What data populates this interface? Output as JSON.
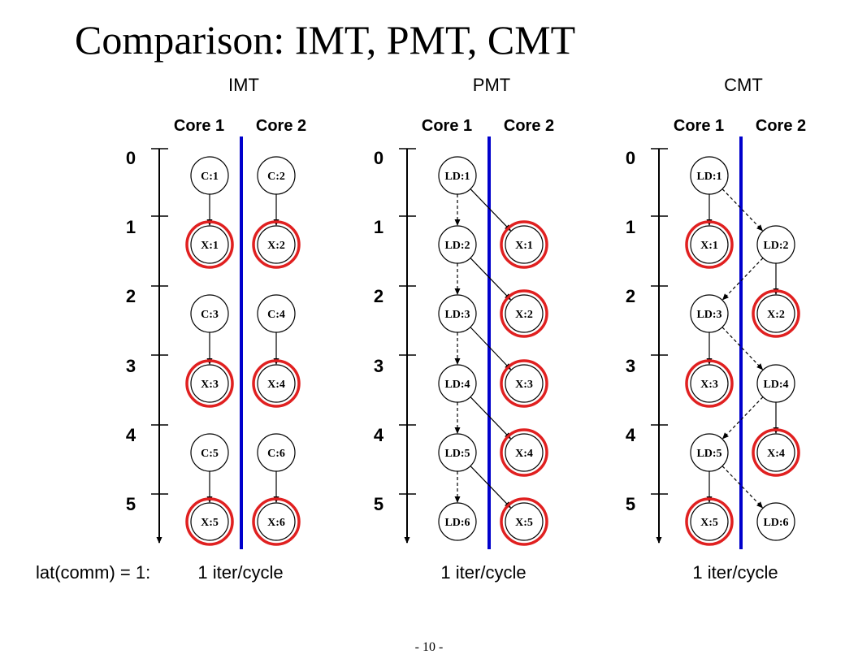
{
  "title": "Comparison: IMT, PMT, CMT",
  "latency_label": "lat(comm) = 1:",
  "page_number": "- 10 -",
  "colors": {
    "divider": "#0000cc",
    "highlight": "#e02020",
    "stroke": "#000000"
  },
  "panels": [
    {
      "name": "IMT",
      "core_labels": [
        "Core 1",
        "Core 2"
      ],
      "ticks": [
        "0",
        "1",
        "2",
        "3",
        "4",
        "5"
      ],
      "throughput": "1 iter/cycle",
      "nodes": [
        {
          "id": "C:1",
          "core": 1,
          "slot": 0,
          "hl": false
        },
        {
          "id": "C:2",
          "core": 2,
          "slot": 0,
          "hl": false
        },
        {
          "id": "X:1",
          "core": 1,
          "slot": 1,
          "hl": true
        },
        {
          "id": "X:2",
          "core": 2,
          "slot": 1,
          "hl": true
        },
        {
          "id": "C:3",
          "core": 1,
          "slot": 2,
          "hl": false
        },
        {
          "id": "C:4",
          "core": 2,
          "slot": 2,
          "hl": false
        },
        {
          "id": "X:3",
          "core": 1,
          "slot": 3,
          "hl": true
        },
        {
          "id": "X:4",
          "core": 2,
          "slot": 3,
          "hl": true
        },
        {
          "id": "C:5",
          "core": 1,
          "slot": 4,
          "hl": false
        },
        {
          "id": "C:6",
          "core": 2,
          "slot": 4,
          "hl": false
        },
        {
          "id": "X:5",
          "core": 1,
          "slot": 5,
          "hl": true
        },
        {
          "id": "X:6",
          "core": 2,
          "slot": 5,
          "hl": true
        }
      ],
      "edges": [
        {
          "from": "C:1",
          "to": "X:1",
          "dashed": false
        },
        {
          "from": "C:2",
          "to": "X:2",
          "dashed": false
        },
        {
          "from": "C:3",
          "to": "X:3",
          "dashed": false
        },
        {
          "from": "C:4",
          "to": "X:4",
          "dashed": false
        },
        {
          "from": "C:5",
          "to": "X:5",
          "dashed": false
        },
        {
          "from": "C:6",
          "to": "X:6",
          "dashed": false
        }
      ]
    },
    {
      "name": "PMT",
      "core_labels": [
        "Core 1",
        "Core 2"
      ],
      "ticks": [
        "0",
        "1",
        "2",
        "3",
        "4",
        "5"
      ],
      "throughput": "1 iter/cycle",
      "nodes": [
        {
          "id": "LD:1",
          "core": 1,
          "slot": 0,
          "hl": false
        },
        {
          "id": "LD:2",
          "core": 1,
          "slot": 1,
          "hl": false
        },
        {
          "id": "X:1",
          "core": 2,
          "slot": 1,
          "hl": true
        },
        {
          "id": "LD:3",
          "core": 1,
          "slot": 2,
          "hl": false
        },
        {
          "id": "X:2",
          "core": 2,
          "slot": 2,
          "hl": true
        },
        {
          "id": "LD:4",
          "core": 1,
          "slot": 3,
          "hl": false
        },
        {
          "id": "X:3",
          "core": 2,
          "slot": 3,
          "hl": true
        },
        {
          "id": "LD:5",
          "core": 1,
          "slot": 4,
          "hl": false
        },
        {
          "id": "X:4",
          "core": 2,
          "slot": 4,
          "hl": true
        },
        {
          "id": "LD:6",
          "core": 1,
          "slot": 5,
          "hl": false
        },
        {
          "id": "X:5",
          "core": 2,
          "slot": 5,
          "hl": true
        }
      ],
      "edges": [
        {
          "from": "LD:1",
          "to": "LD:2",
          "dashed": true
        },
        {
          "from": "LD:2",
          "to": "LD:3",
          "dashed": true
        },
        {
          "from": "LD:3",
          "to": "LD:4",
          "dashed": true
        },
        {
          "from": "LD:4",
          "to": "LD:5",
          "dashed": true
        },
        {
          "from": "LD:5",
          "to": "LD:6",
          "dashed": true
        },
        {
          "from": "LD:1",
          "to": "X:1",
          "dashed": false
        },
        {
          "from": "LD:2",
          "to": "X:2",
          "dashed": false
        },
        {
          "from": "LD:3",
          "to": "X:3",
          "dashed": false
        },
        {
          "from": "LD:4",
          "to": "X:4",
          "dashed": false
        },
        {
          "from": "LD:5",
          "to": "X:5",
          "dashed": false
        }
      ]
    },
    {
      "name": "CMT",
      "core_labels": [
        "Core 1",
        "Core 2"
      ],
      "ticks": [
        "0",
        "1",
        "2",
        "3",
        "4",
        "5"
      ],
      "throughput": "1 iter/cycle",
      "nodes": [
        {
          "id": "LD:1",
          "core": 1,
          "slot": 0,
          "hl": false
        },
        {
          "id": "X:1",
          "core": 1,
          "slot": 1,
          "hl": true
        },
        {
          "id": "LD:2",
          "core": 2,
          "slot": 1,
          "hl": false
        },
        {
          "id": "LD:3",
          "core": 1,
          "slot": 2,
          "hl": false
        },
        {
          "id": "X:2",
          "core": 2,
          "slot": 2,
          "hl": true
        },
        {
          "id": "X:3",
          "core": 1,
          "slot": 3,
          "hl": true
        },
        {
          "id": "LD:4",
          "core": 2,
          "slot": 3,
          "hl": false
        },
        {
          "id": "LD:5",
          "core": 1,
          "slot": 4,
          "hl": false
        },
        {
          "id": "X:4",
          "core": 2,
          "slot": 4,
          "hl": true
        },
        {
          "id": "X:5",
          "core": 1,
          "slot": 5,
          "hl": true
        },
        {
          "id": "LD:6",
          "core": 2,
          "slot": 5,
          "hl": false
        }
      ],
      "edges": [
        {
          "from": "LD:1",
          "to": "X:1",
          "dashed": false
        },
        {
          "from": "LD:1",
          "to": "LD:2",
          "dashed": true
        },
        {
          "from": "LD:2",
          "to": "X:2",
          "dashed": false
        },
        {
          "from": "LD:2",
          "to": "LD:3",
          "dashed": true
        },
        {
          "from": "LD:3",
          "to": "X:3",
          "dashed": false
        },
        {
          "from": "LD:3",
          "to": "LD:4",
          "dashed": true
        },
        {
          "from": "LD:4",
          "to": "X:4",
          "dashed": false
        },
        {
          "from": "LD:4",
          "to": "LD:5",
          "dashed": true
        },
        {
          "from": "LD:5",
          "to": "X:5",
          "dashed": false
        },
        {
          "from": "LD:5",
          "to": "LD:6",
          "dashed": true
        }
      ]
    }
  ]
}
